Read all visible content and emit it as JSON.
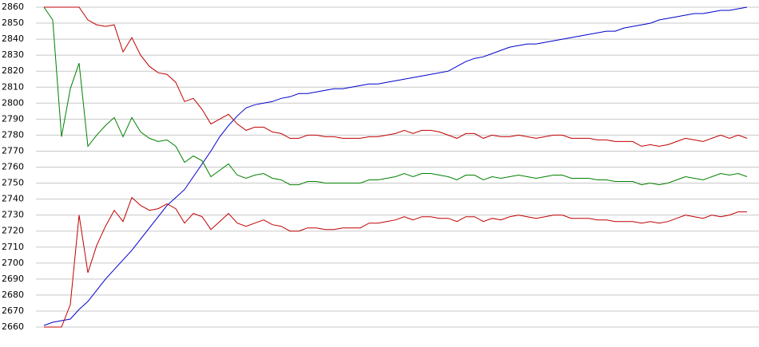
{
  "chart_data": {
    "type": "line",
    "categories": [
      null,
      null,
      null,
      null,
      null,
      null,
      null,
      null,
      null,
      null,
      null,
      null,
      null,
      null,
      null,
      null,
      null,
      null,
      null,
      null,
      null,
      null,
      null,
      null,
      null,
      null,
      null,
      null,
      null,
      null,
      null,
      null,
      null,
      null,
      null,
      null,
      null,
      null,
      null,
      null,
      null,
      null,
      null,
      null,
      null,
      null,
      null,
      null,
      null,
      null,
      null,
      null,
      null,
      null,
      null,
      null,
      null,
      null,
      null,
      null,
      null,
      null,
      null,
      null,
      null,
      null,
      null,
      null,
      null,
      null,
      null,
      null,
      null,
      null,
      null,
      null,
      null,
      null,
      null,
      null,
      null
    ],
    "series": [
      {
        "color": "#0000cc",
        "values": [
          2661,
          2663,
          2664,
          2665,
          2671,
          2676,
          2683,
          2690,
          2696,
          2702,
          2708,
          2715,
          2722,
          2729,
          2736,
          2741,
          2746,
          2754,
          2762,
          2770,
          2779,
          2786,
          2792,
          2797,
          2799,
          2800,
          2801,
          2803,
          2804,
          2806,
          2806,
          2807,
          2808,
          2809,
          2809,
          2810,
          2811,
          2812,
          2812,
          2813,
          2814,
          2815,
          2816,
          2817,
          2818,
          2819,
          2820,
          2823,
          2826,
          2828,
          2829,
          2831,
          2833,
          2835,
          2836,
          2837,
          2837,
          2838,
          2839,
          2840,
          2841,
          2842,
          2843,
          2844,
          2845,
          2845,
          2847,
          2848,
          2849,
          2850,
          2852,
          2853,
          2854,
          2855,
          2856,
          2856,
          2857,
          2858,
          2858,
          2859,
          2860
        ]
      },
      {
        "color": "#c00000",
        "values": [
          2860,
          2860,
          2860,
          2860,
          2860,
          2852,
          2849,
          2848,
          2849,
          2832,
          2841,
          2830,
          2823,
          2819,
          2818,
          2813,
          2801,
          2803,
          2796,
          2787,
          2790,
          2793,
          2787,
          2783,
          2785,
          2785,
          2782,
          2781,
          2778,
          2778,
          2780,
          2780,
          2779,
          2779,
          2778,
          2778,
          2778,
          2779,
          2779,
          2780,
          2781,
          2783,
          2781,
          2783,
          2783,
          2782,
          2780,
          2778,
          2781,
          2781,
          2778,
          2780,
          2779,
          2779,
          2780,
          2779,
          2778,
          2779,
          2780,
          2780,
          2778,
          2778,
          2778,
          2777,
          2777,
          2776,
          2776,
          2776,
          2773,
          2774,
          2773,
          2774,
          2776,
          2778,
          2777,
          2776,
          2778,
          2780,
          2778,
          2780,
          2778
        ]
      },
      {
        "color": "#008000",
        "values": [
          2860,
          2852,
          2779,
          2809,
          2825,
          2773,
          2780,
          2786,
          2791,
          2779,
          2791,
          2782,
          2778,
          2776,
          2777,
          2773,
          2763,
          2767,
          2764,
          2754,
          2758,
          2762,
          2755,
          2753,
          2755,
          2756,
          2753,
          2752,
          2749,
          2749,
          2751,
          2751,
          2750,
          2750,
          2750,
          2750,
          2750,
          2752,
          2752,
          2753,
          2754,
          2756,
          2754,
          2756,
          2756,
          2755,
          2754,
          2752,
          2755,
          2755,
          2752,
          2754,
          2753,
          2754,
          2755,
          2754,
          2753,
          2754,
          2755,
          2755,
          2753,
          2753,
          2753,
          2752,
          2752,
          2751,
          2751,
          2751,
          2749,
          2750,
          2749,
          2750,
          2752,
          2754,
          2753,
          2752,
          2754,
          2756,
          2755,
          2756,
          2754
        ]
      },
      {
        "color": "#c00000",
        "values": [
          2660,
          2660,
          2660,
          2674,
          2730,
          2694,
          2711,
          2723,
          2733,
          2726,
          2741,
          2736,
          2733,
          2734,
          2737,
          2734,
          2725,
          2731,
          2729,
          2721,
          2726,
          2731,
          2725,
          2723,
          2725,
          2727,
          2724,
          2723,
          2720,
          2720,
          2722,
          2722,
          2721,
          2721,
          2722,
          2722,
          2722,
          2725,
          2725,
          2726,
          2727,
          2729,
          2727,
          2729,
          2729,
          2728,
          2728,
          2726,
          2729,
          2729,
          2726,
          2728,
          2727,
          2729,
          2730,
          2729,
          2728,
          2729,
          2730,
          2730,
          2728,
          2728,
          2728,
          2727,
          2727,
          2726,
          2726,
          2726,
          2725,
          2726,
          2725,
          2726,
          2728,
          2730,
          2729,
          2728,
          2730,
          2729,
          2730,
          2732,
          2732
        ]
      }
    ],
    "ylim": [
      2660,
      2860
    ],
    "yticks": [
      2660,
      2670,
      2680,
      2690,
      2700,
      2710,
      2720,
      2730,
      2740,
      2750,
      2760,
      2770,
      2780,
      2790,
      2800,
      2810,
      2820,
      2830,
      2840,
      2850,
      2860
    ],
    "grid": true
  }
}
